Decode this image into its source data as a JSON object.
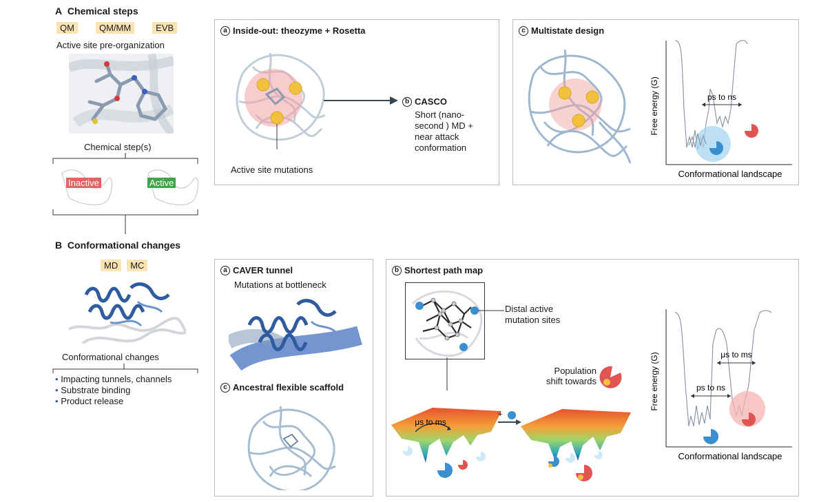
{
  "sectionA": {
    "letter": "A",
    "title": "Chemical steps",
    "methods": [
      "QM",
      "QM/MM",
      "EVB"
    ],
    "subtitle": "Active site pre-organization",
    "step_label": "Chemical step(s)",
    "inactive_label": "Inactive",
    "active_label": "Active"
  },
  "sectionB": {
    "letter": "B",
    "title": "Conformational changes",
    "methods": [
      "MD",
      "MC"
    ],
    "caption": "Conformational changes",
    "bullets": [
      "Impacting tunnels, channels",
      "Substrate binding",
      "Product release"
    ]
  },
  "panelInsideOut": {
    "letter": "a",
    "title": "Inside-out: theozyme + Rosetta",
    "label": "Active site mutations"
  },
  "casco": {
    "letter": "b",
    "title": "CASCO",
    "lines": [
      "Short (nano-",
      "second ) MD +",
      "near attack",
      "conformation"
    ]
  },
  "panelMultistate": {
    "letter": "c",
    "title": "Multistate design",
    "ylabel": "Free energy (G)",
    "xlabel": "Conformational landscape",
    "timescale": "ps to ns"
  },
  "panelCaver": {
    "letter": "a",
    "title": "CAVER tunnel",
    "subtitle": "Mutations at bottleneck"
  },
  "panelAncestral": {
    "letter": "c",
    "title": "Ancestral flexible scaffold"
  },
  "panelSPM": {
    "letter": "b",
    "title": "Shortest path map",
    "distal_lines": [
      "Distal active",
      "mutation sites"
    ],
    "population_lines": [
      "Population",
      "shift towards"
    ],
    "landscape_label": "μs to ms",
    "plus": "+",
    "ylabel": "Free energy (G)",
    "xlabel": "Conformational landscape",
    "fast": "ps to ns",
    "slow": "μs to ms"
  },
  "colors": {
    "tag": "#fbe3b4",
    "inactive": "#e06461",
    "active": "#3fa548",
    "blue": "#3a8fd1",
    "red": "#e05454",
    "protein": "#9fb9d3"
  }
}
